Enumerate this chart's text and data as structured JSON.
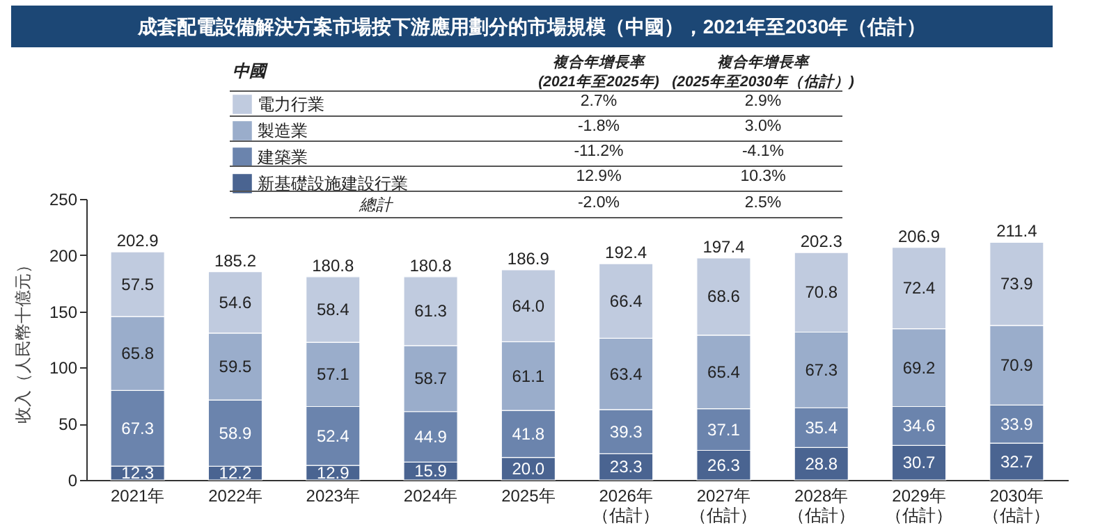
{
  "chart_data": {
    "type": "bar",
    "stacked": true,
    "title": "成套配電設備解決方案市場按下游應用劃分的市場規模（中國），2021年至2030年（估計）",
    "ylabel": "收入（人民幣十億元）",
    "legend_title": "中國",
    "legend": "top",
    "categories": [
      "2021年",
      "2022年",
      "2023年",
      "2024年",
      "2025年",
      "2026年（估計）",
      "2027年（估計）",
      "2028年（估計）",
      "2029年（估計）",
      "2030年（估計）"
    ],
    "series": [
      {
        "name": "新基礎設施建設行業",
        "color": "#4a6491",
        "values": [
          12.3,
          12.2,
          12.9,
          15.9,
          20.0,
          23.3,
          26.3,
          28.8,
          30.7,
          32.7
        ],
        "value_labels": [
          "12.3",
          "12.2",
          "12.9",
          "15.9",
          "20.0",
          "23.3",
          "26.3",
          "28.8",
          "30.7",
          "32.7"
        ]
      },
      {
        "name": "建築業",
        "color": "#6b84ad",
        "values": [
          67.3,
          58.9,
          52.4,
          44.9,
          41.8,
          39.3,
          37.1,
          35.4,
          34.6,
          33.9
        ],
        "value_labels": [
          "67.3",
          "58.9",
          "52.4",
          "44.9",
          "41.8",
          "39.3",
          "37.1",
          "35.4",
          "34.6",
          "33.9"
        ]
      },
      {
        "name": "製造業",
        "color": "#9aadcb",
        "values": [
          65.8,
          59.5,
          57.1,
          58.7,
          61.1,
          63.4,
          65.4,
          67.3,
          69.2,
          70.9
        ],
        "value_labels": [
          "65.8",
          "59.5",
          "57.1",
          "58.7",
          "61.1",
          "63.4",
          "65.4",
          "67.3",
          "69.2",
          "70.9"
        ]
      },
      {
        "name": "電力行業",
        "color": "#c0cbdf",
        "values": [
          57.5,
          54.6,
          58.4,
          61.3,
          64.0,
          66.4,
          68.6,
          70.8,
          72.4,
          73.9
        ],
        "value_labels": [
          "57.5",
          "54.6",
          "58.4",
          "61.3",
          "64.0",
          "66.4",
          "68.6",
          "70.8",
          "72.4",
          "73.9"
        ]
      }
    ],
    "totals": [
      "202.9",
      "185.2",
      "180.8",
      "180.8",
      "186.9",
      "192.4",
      "197.4",
      "202.3",
      "206.9",
      "211.4"
    ],
    "ylim": [
      0,
      250
    ],
    "yticks": [
      0,
      50,
      100,
      150,
      200,
      250
    ],
    "grid": false,
    "annotations": [
      "複合年增長率\n(2021年至2025年)",
      "複合年增長率\n(2025年至2030年（估計）)",
      "2.7%",
      "2.9%",
      "-1.8%",
      "3.0%",
      "-11.2%",
      "-4.1%",
      "12.9%",
      "10.3%",
      "總計",
      "-2.0%",
      "2.5%"
    ]
  }
}
